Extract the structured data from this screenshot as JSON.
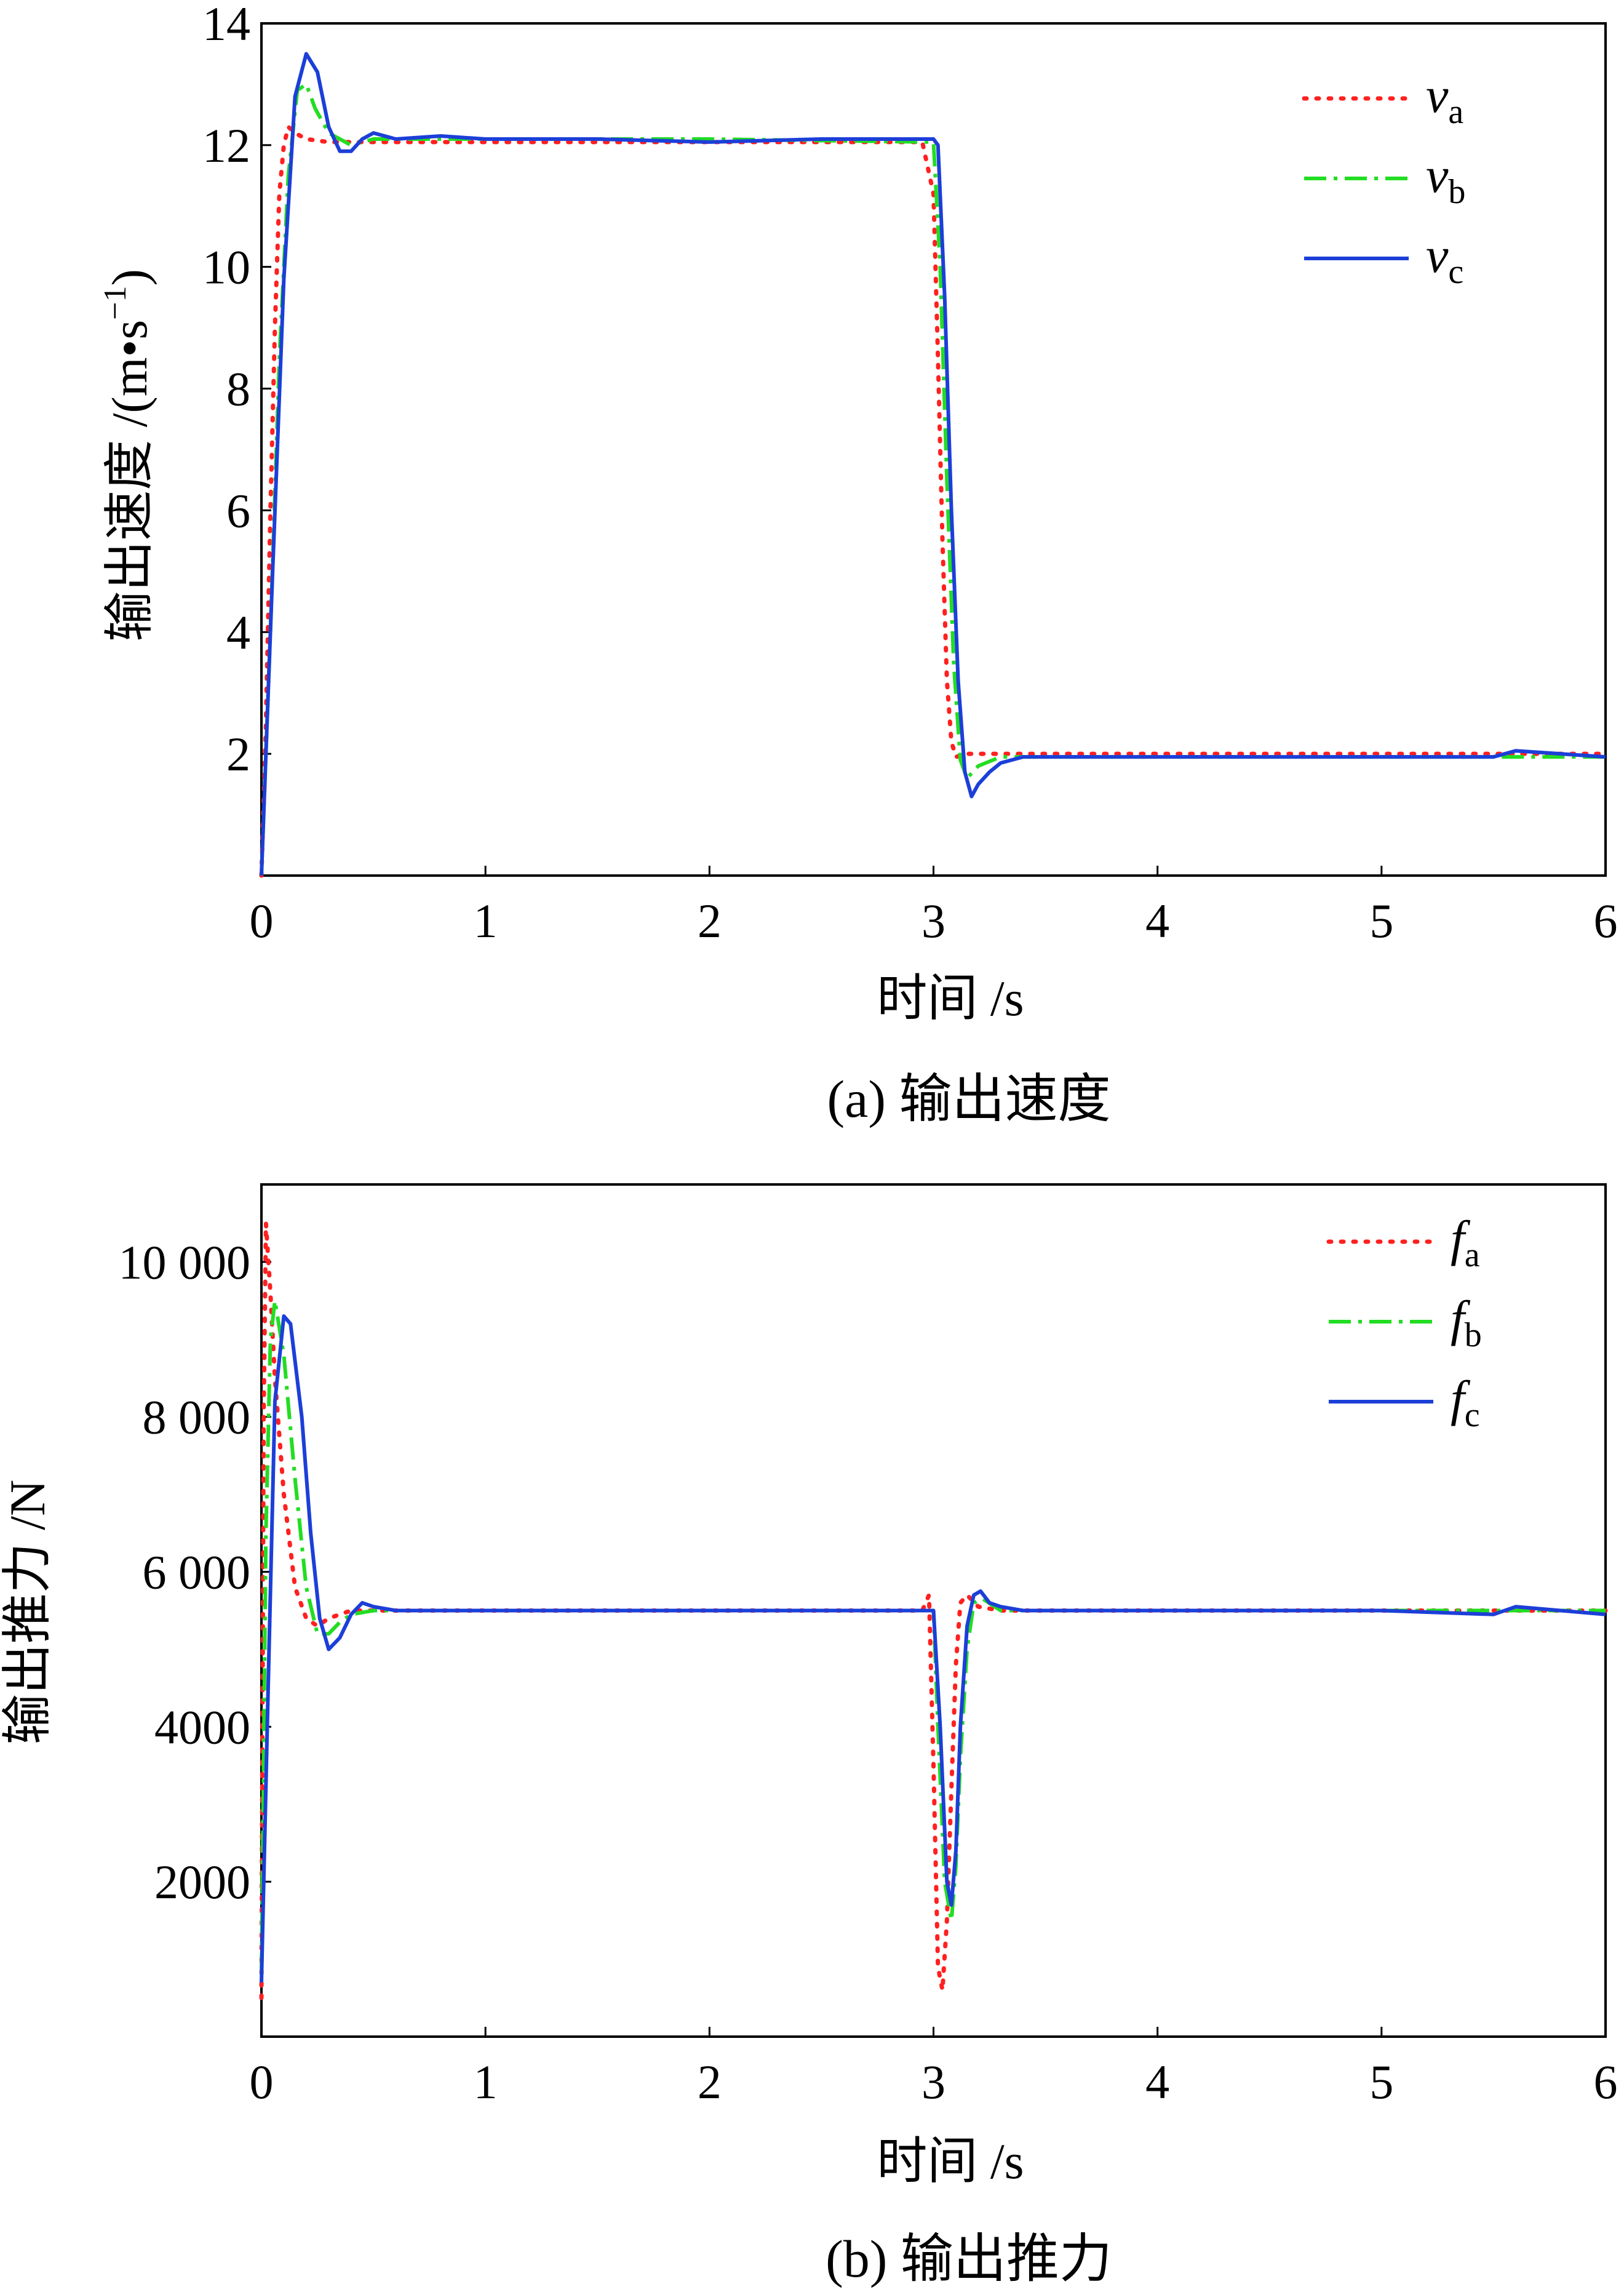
{
  "chart_data": [
    {
      "type": "line",
      "caption": "(a) 输出速度",
      "xlabel": "时间 /s",
      "ylabel": "输出速度 /(m•s",
      "ylabel_sup": "−1",
      "ylabel_close": ")",
      "xlim": [
        0,
        6
      ],
      "ylim": [
        0,
        14
      ],
      "xticks": [
        "0",
        "1",
        "2",
        "3",
        "4",
        "5",
        "6"
      ],
      "yticks": [
        "2",
        "4",
        "6",
        "8",
        "10",
        "12",
        "14"
      ],
      "legend_position": "top-right",
      "series": [
        {
          "name": "v",
          "sub": "a",
          "color": "#ff2020",
          "dash": "dot",
          "x": [
            0.0,
            0.02,
            0.04,
            0.06,
            0.08,
            0.1,
            0.12,
            0.15,
            0.2,
            0.3,
            0.5,
            1.0,
            2.0,
            2.95,
            3.0,
            3.02,
            3.04,
            3.06,
            3.08,
            3.1,
            3.15,
            3.3,
            4.0,
            5.0,
            6.0
          ],
          "y": [
            0.0,
            2.5,
            6.0,
            9.0,
            11.2,
            12.0,
            12.3,
            12.2,
            12.1,
            12.05,
            12.05,
            12.05,
            12.05,
            12.05,
            11.2,
            8.5,
            5.5,
            3.2,
            2.2,
            1.95,
            2.0,
            2.0,
            2.0,
            2.0,
            2.0
          ]
        },
        {
          "name": "v",
          "sub": "b",
          "color": "#22dd22",
          "dash": "dashdot",
          "x": [
            0.0,
            0.04,
            0.08,
            0.12,
            0.16,
            0.2,
            0.24,
            0.3,
            0.4,
            0.5,
            1.0,
            2.0,
            3.0,
            3.03,
            3.06,
            3.09,
            3.12,
            3.15,
            3.2,
            3.3,
            4.0,
            5.0,
            6.0
          ],
          "y": [
            0.0,
            4.0,
            8.5,
            11.5,
            12.9,
            13.0,
            12.6,
            12.2,
            12.0,
            12.1,
            12.1,
            12.1,
            12.05,
            10.0,
            6.5,
            3.5,
            1.9,
            1.6,
            1.8,
            1.95,
            1.95,
            1.95,
            1.95
          ]
        },
        {
          "name": "v",
          "sub": "c",
          "color": "#1c3fd8",
          "dash": "solid",
          "x": [
            0.0,
            0.05,
            0.1,
            0.15,
            0.2,
            0.25,
            0.3,
            0.35,
            0.4,
            0.45,
            0.5,
            0.6,
            0.8,
            1.0,
            1.5,
            2.0,
            2.5,
            3.0,
            3.02,
            3.05,
            3.08,
            3.11,
            3.14,
            3.17,
            3.2,
            3.25,
            3.3,
            3.4,
            3.6,
            4.0,
            4.5,
            5.0,
            5.5,
            5.6,
            6.0
          ],
          "y": [
            0.0,
            5.0,
            9.8,
            12.8,
            13.5,
            13.2,
            12.3,
            11.9,
            11.9,
            12.1,
            12.2,
            12.1,
            12.15,
            12.1,
            12.1,
            12.05,
            12.1,
            12.1,
            12.0,
            9.5,
            6.0,
            3.2,
            1.7,
            1.3,
            1.5,
            1.7,
            1.85,
            1.95,
            1.95,
            1.95,
            1.95,
            1.95,
            1.95,
            2.05,
            1.95
          ]
        }
      ]
    },
    {
      "type": "line",
      "caption": "(b) 输出推力",
      "xlabel": "时间 /s",
      "ylabel": "输出推力 /N",
      "xlim": [
        0,
        6
      ],
      "ylim": [
        0,
        11000
      ],
      "xticks": [
        "0",
        "1",
        "2",
        "3",
        "4",
        "5",
        "6"
      ],
      "yticks": [
        "2000",
        "4000",
        "6 000",
        "8 000",
        "10 000"
      ],
      "ytick_values": [
        2000,
        4000,
        6000,
        8000,
        10000
      ],
      "legend_position": "top-right",
      "series": [
        {
          "name": "f",
          "sub": "a",
          "color": "#ff2020",
          "dash": "dot",
          "x": [
            0.0,
            0.01,
            0.02,
            0.04,
            0.06,
            0.1,
            0.15,
            0.2,
            0.25,
            0.3,
            0.4,
            0.5,
            1.0,
            2.0,
            2.95,
            2.98,
            3.0,
            3.02,
            3.04,
            3.06,
            3.08,
            3.1,
            3.12,
            3.15,
            3.2,
            3.3,
            4.0,
            5.0,
            6.0
          ],
          "y": [
            500,
            8000,
            10500,
            9600,
            8500,
            7000,
            5800,
            5400,
            5300,
            5400,
            5500,
            5500,
            5500,
            5500,
            5500,
            5700,
            3500,
            900,
            600,
            1500,
            3200,
            4800,
            5600,
            5700,
            5550,
            5500,
            5500,
            5500,
            5500
          ]
        },
        {
          "name": "f",
          "sub": "b",
          "color": "#22dd22",
          "dash": "dashdot",
          "x": [
            0.0,
            0.02,
            0.04,
            0.06,
            0.1,
            0.15,
            0.2,
            0.25,
            0.3,
            0.35,
            0.4,
            0.5,
            1.0,
            2.0,
            3.0,
            3.02,
            3.05,
            3.08,
            3.1,
            3.12,
            3.15,
            3.18,
            3.22,
            3.3,
            4.0,
            5.0,
            6.0
          ],
          "y": [
            800,
            6500,
            9000,
            9500,
            8800,
            7200,
            5800,
            5200,
            5200,
            5350,
            5450,
            5500,
            5500,
            5500,
            5500,
            4000,
            2000,
            1500,
            2200,
            3600,
            5000,
            5600,
            5650,
            5500,
            5500,
            5500,
            5500
          ]
        },
        {
          "name": "f",
          "sub": "c",
          "color": "#1c3fd8",
          "dash": "solid",
          "x": [
            0.0,
            0.03,
            0.06,
            0.1,
            0.13,
            0.18,
            0.22,
            0.26,
            0.3,
            0.35,
            0.4,
            0.45,
            0.5,
            0.6,
            1.0,
            2.0,
            2.9,
            3.0,
            3.03,
            3.06,
            3.08,
            3.1,
            3.12,
            3.15,
            3.18,
            3.21,
            3.25,
            3.3,
            3.4,
            3.6,
            4.0,
            4.5,
            5.0,
            5.5,
            5.6,
            6.0
          ],
          "y": [
            700,
            4500,
            8200,
            9300,
            9200,
            8000,
            6500,
            5400,
            5000,
            5150,
            5450,
            5600,
            5550,
            5500,
            5500,
            5500,
            5500,
            5500,
            4000,
            2000,
            1700,
            2400,
            4000,
            5300,
            5700,
            5750,
            5600,
            5550,
            5500,
            5500,
            5500,
            5500,
            5500,
            5450,
            5550,
            5450
          ]
        }
      ]
    }
  ]
}
